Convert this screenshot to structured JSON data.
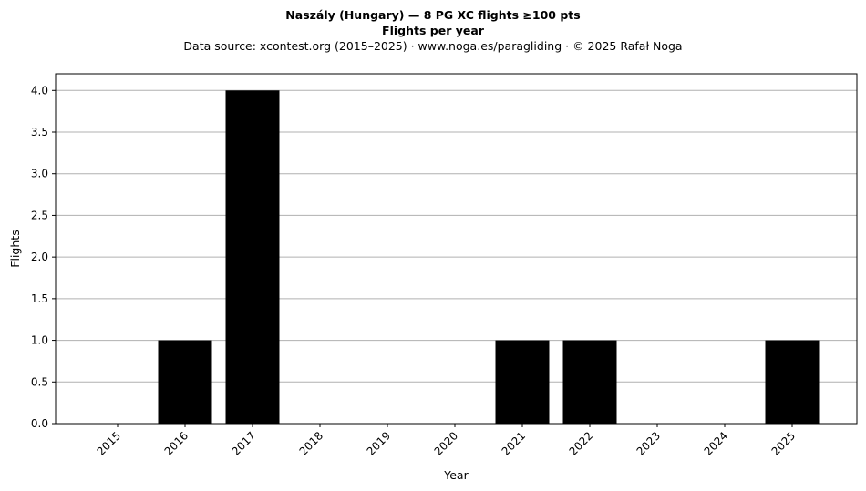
{
  "chart_data": {
    "type": "bar",
    "title": "Naszály (Hungary)  —  8 PG XC flights ≥100 pts",
    "subtitle": "Flights per year",
    "source_line": "Data source: xcontest.org (2015–2025)  ·  www.noga.es/paragliding  ·  © 2025 Rafał Noga",
    "xlabel": "Year",
    "ylabel": "Flights",
    "categories": [
      "2015",
      "2016",
      "2017",
      "2018",
      "2019",
      "2020",
      "2021",
      "2022",
      "2023",
      "2024",
      "2025"
    ],
    "values": [
      0,
      1,
      4,
      0,
      0,
      0,
      1,
      1,
      0,
      0,
      1
    ],
    "ylim": [
      0,
      4.2
    ],
    "yticks": [
      "0.0",
      "0.5",
      "1.0",
      "1.5",
      "2.0",
      "2.5",
      "3.0",
      "3.5",
      "4.0"
    ],
    "grid": "y",
    "bar_color": "#000000",
    "grid_color": "#b0b0b0"
  }
}
